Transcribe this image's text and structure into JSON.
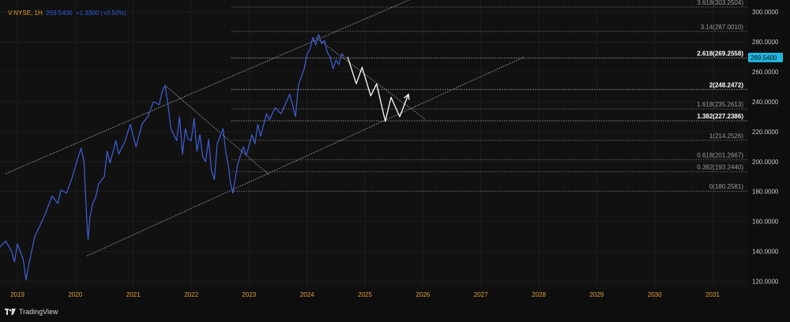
{
  "header": {
    "symbol": "V:NYSE, 1H",
    "price": "269.5400",
    "change": "+1.3300 (+0.50%)"
  },
  "footer": {
    "brand": "TradingView"
  },
  "colors": {
    "background": "#0e0e0e",
    "price_line": "#3f5fd8",
    "projection": "#ffffff",
    "channel": "#9a9a9a",
    "fib": "#8a8a8a",
    "year_label": "#e0a030",
    "axis_text": "#c8c8c8",
    "price_tag_bg": "#1fb8e0",
    "price_tag_text": "#0c0c0c"
  },
  "chart_data": {
    "type": "line",
    "x_ticks": [
      "2019",
      "2020",
      "2021",
      "2022",
      "2023",
      "2024",
      "2025",
      "2026",
      "2027",
      "2028",
      "2029",
      "2030",
      "2031"
    ],
    "y_ticks": [
      "120.0000",
      "140.0000",
      "160.0000",
      "180.0000",
      "200.0000",
      "220.0000",
      "240.0000",
      "260.0000",
      "280.0000",
      "300.0000"
    ],
    "ylim": [
      115,
      308
    ],
    "xlim": [
      2018.7,
      2031.6
    ],
    "last_price": "269.5400",
    "series": [
      {
        "role": "price",
        "points": [
          [
            2018.7,
            143
          ],
          [
            2018.8,
            147
          ],
          [
            2018.9,
            140
          ],
          [
            2018.95,
            133
          ],
          [
            2019.0,
            145
          ],
          [
            2019.1,
            135
          ],
          [
            2019.15,
            121
          ],
          [
            2019.2,
            132
          ],
          [
            2019.3,
            150
          ],
          [
            2019.4,
            158
          ],
          [
            2019.5,
            167
          ],
          [
            2019.6,
            177
          ],
          [
            2019.7,
            172
          ],
          [
            2019.75,
            181
          ],
          [
            2019.85,
            179
          ],
          [
            2019.95,
            190
          ],
          [
            2020.05,
            203
          ],
          [
            2020.1,
            209
          ],
          [
            2020.15,
            200
          ],
          [
            2020.2,
            160
          ],
          [
            2020.22,
            148
          ],
          [
            2020.25,
            162
          ],
          [
            2020.3,
            172
          ],
          [
            2020.35,
            176
          ],
          [
            2020.4,
            185
          ],
          [
            2020.5,
            190
          ],
          [
            2020.55,
            207
          ],
          [
            2020.6,
            199
          ],
          [
            2020.7,
            214
          ],
          [
            2020.75,
            205
          ],
          [
            2020.85,
            213
          ],
          [
            2020.95,
            225
          ],
          [
            2021.0,
            217
          ],
          [
            2021.05,
            210
          ],
          [
            2021.15,
            225
          ],
          [
            2021.25,
            230
          ],
          [
            2021.35,
            240
          ],
          [
            2021.45,
            238
          ],
          [
            2021.5,
            247
          ],
          [
            2021.55,
            251
          ],
          [
            2021.6,
            238
          ],
          [
            2021.65,
            222
          ],
          [
            2021.75,
            214
          ],
          [
            2021.8,
            230
          ],
          [
            2021.85,
            205
          ],
          [
            2021.9,
            222
          ],
          [
            2021.95,
            215
          ],
          [
            2022.0,
            214
          ],
          [
            2022.05,
            229
          ],
          [
            2022.1,
            207
          ],
          [
            2022.15,
            218
          ],
          [
            2022.2,
            203
          ],
          [
            2022.25,
            200
          ],
          [
            2022.3,
            215
          ],
          [
            2022.35,
            194
          ],
          [
            2022.4,
            188
          ],
          [
            2022.45,
            212
          ],
          [
            2022.55,
            222
          ],
          [
            2022.6,
            206
          ],
          [
            2022.65,
            195
          ],
          [
            2022.68,
            185
          ],
          [
            2022.72,
            179
          ],
          [
            2022.8,
            198
          ],
          [
            2022.9,
            210
          ],
          [
            2022.95,
            204
          ],
          [
            2023.05,
            218
          ],
          [
            2023.1,
            212
          ],
          [
            2023.15,
            225
          ],
          [
            2023.2,
            217
          ],
          [
            2023.3,
            232
          ],
          [
            2023.35,
            228
          ],
          [
            2023.45,
            236
          ],
          [
            2023.55,
            232
          ],
          [
            2023.6,
            236
          ],
          [
            2023.7,
            245
          ],
          [
            2023.75,
            238
          ],
          [
            2023.8,
            230
          ],
          [
            2023.85,
            251
          ],
          [
            2023.95,
            262
          ],
          [
            2024.0,
            272
          ],
          [
            2024.05,
            275
          ],
          [
            2024.1,
            283
          ],
          [
            2024.15,
            278
          ],
          [
            2024.2,
            285
          ],
          [
            2024.25,
            279
          ],
          [
            2024.3,
            281
          ],
          [
            2024.35,
            273
          ],
          [
            2024.4,
            270
          ],
          [
            2024.45,
            262
          ],
          [
            2024.5,
            268
          ],
          [
            2024.55,
            265
          ],
          [
            2024.6,
            272
          ],
          [
            2024.65,
            270
          ]
        ]
      },
      {
        "role": "projection",
        "points": [
          [
            2024.7,
            270
          ],
          [
            2024.85,
            252
          ],
          [
            2024.95,
            263
          ],
          [
            2025.1,
            244
          ],
          [
            2025.2,
            252
          ],
          [
            2025.35,
            227
          ],
          [
            2025.45,
            243
          ],
          [
            2025.6,
            230
          ],
          [
            2025.75,
            245
          ]
        ]
      }
    ],
    "channel_lines": [
      {
        "from": [
          2018.8,
          192
        ],
        "to": [
          2026.0,
          312
        ]
      },
      {
        "from": [
          2020.2,
          137
        ],
        "to": [
          2027.75,
          270
        ]
      },
      {
        "from": [
          2021.55,
          251
        ],
        "to": [
          2023.35,
          191
        ]
      },
      {
        "from": [
          2024.15,
          283
        ],
        "to": [
          2026.05,
          228
        ]
      }
    ],
    "fib_levels": [
      {
        "label": "3.618(303.2504)",
        "value": 303.2504,
        "emphasis": false
      },
      {
        "label": "3.14(287.0010)",
        "value": 287.001,
        "emphasis": false
      },
      {
        "label": "2.618(269.2558)",
        "value": 269.2558,
        "emphasis": true
      },
      {
        "label": "2(248.2472)",
        "value": 248.2472,
        "emphasis": true
      },
      {
        "label": "1.618(235.2613)",
        "value": 235.2613,
        "emphasis": false
      },
      {
        "label": "1.382(227.2386)",
        "value": 227.2386,
        "emphasis": true
      },
      {
        "label": "1(214.2526)",
        "value": 214.2526,
        "emphasis": false
      },
      {
        "label": "0.618(201.2667)",
        "value": 201.2667,
        "emphasis": false
      },
      {
        "label": "0.382(193.2440)",
        "value": 193.244,
        "emphasis": false
      },
      {
        "label": "0(180.2581)",
        "value": 180.2581,
        "emphasis": false
      }
    ],
    "fib_x_range": [
      2022.7,
      2031.6
    ]
  }
}
